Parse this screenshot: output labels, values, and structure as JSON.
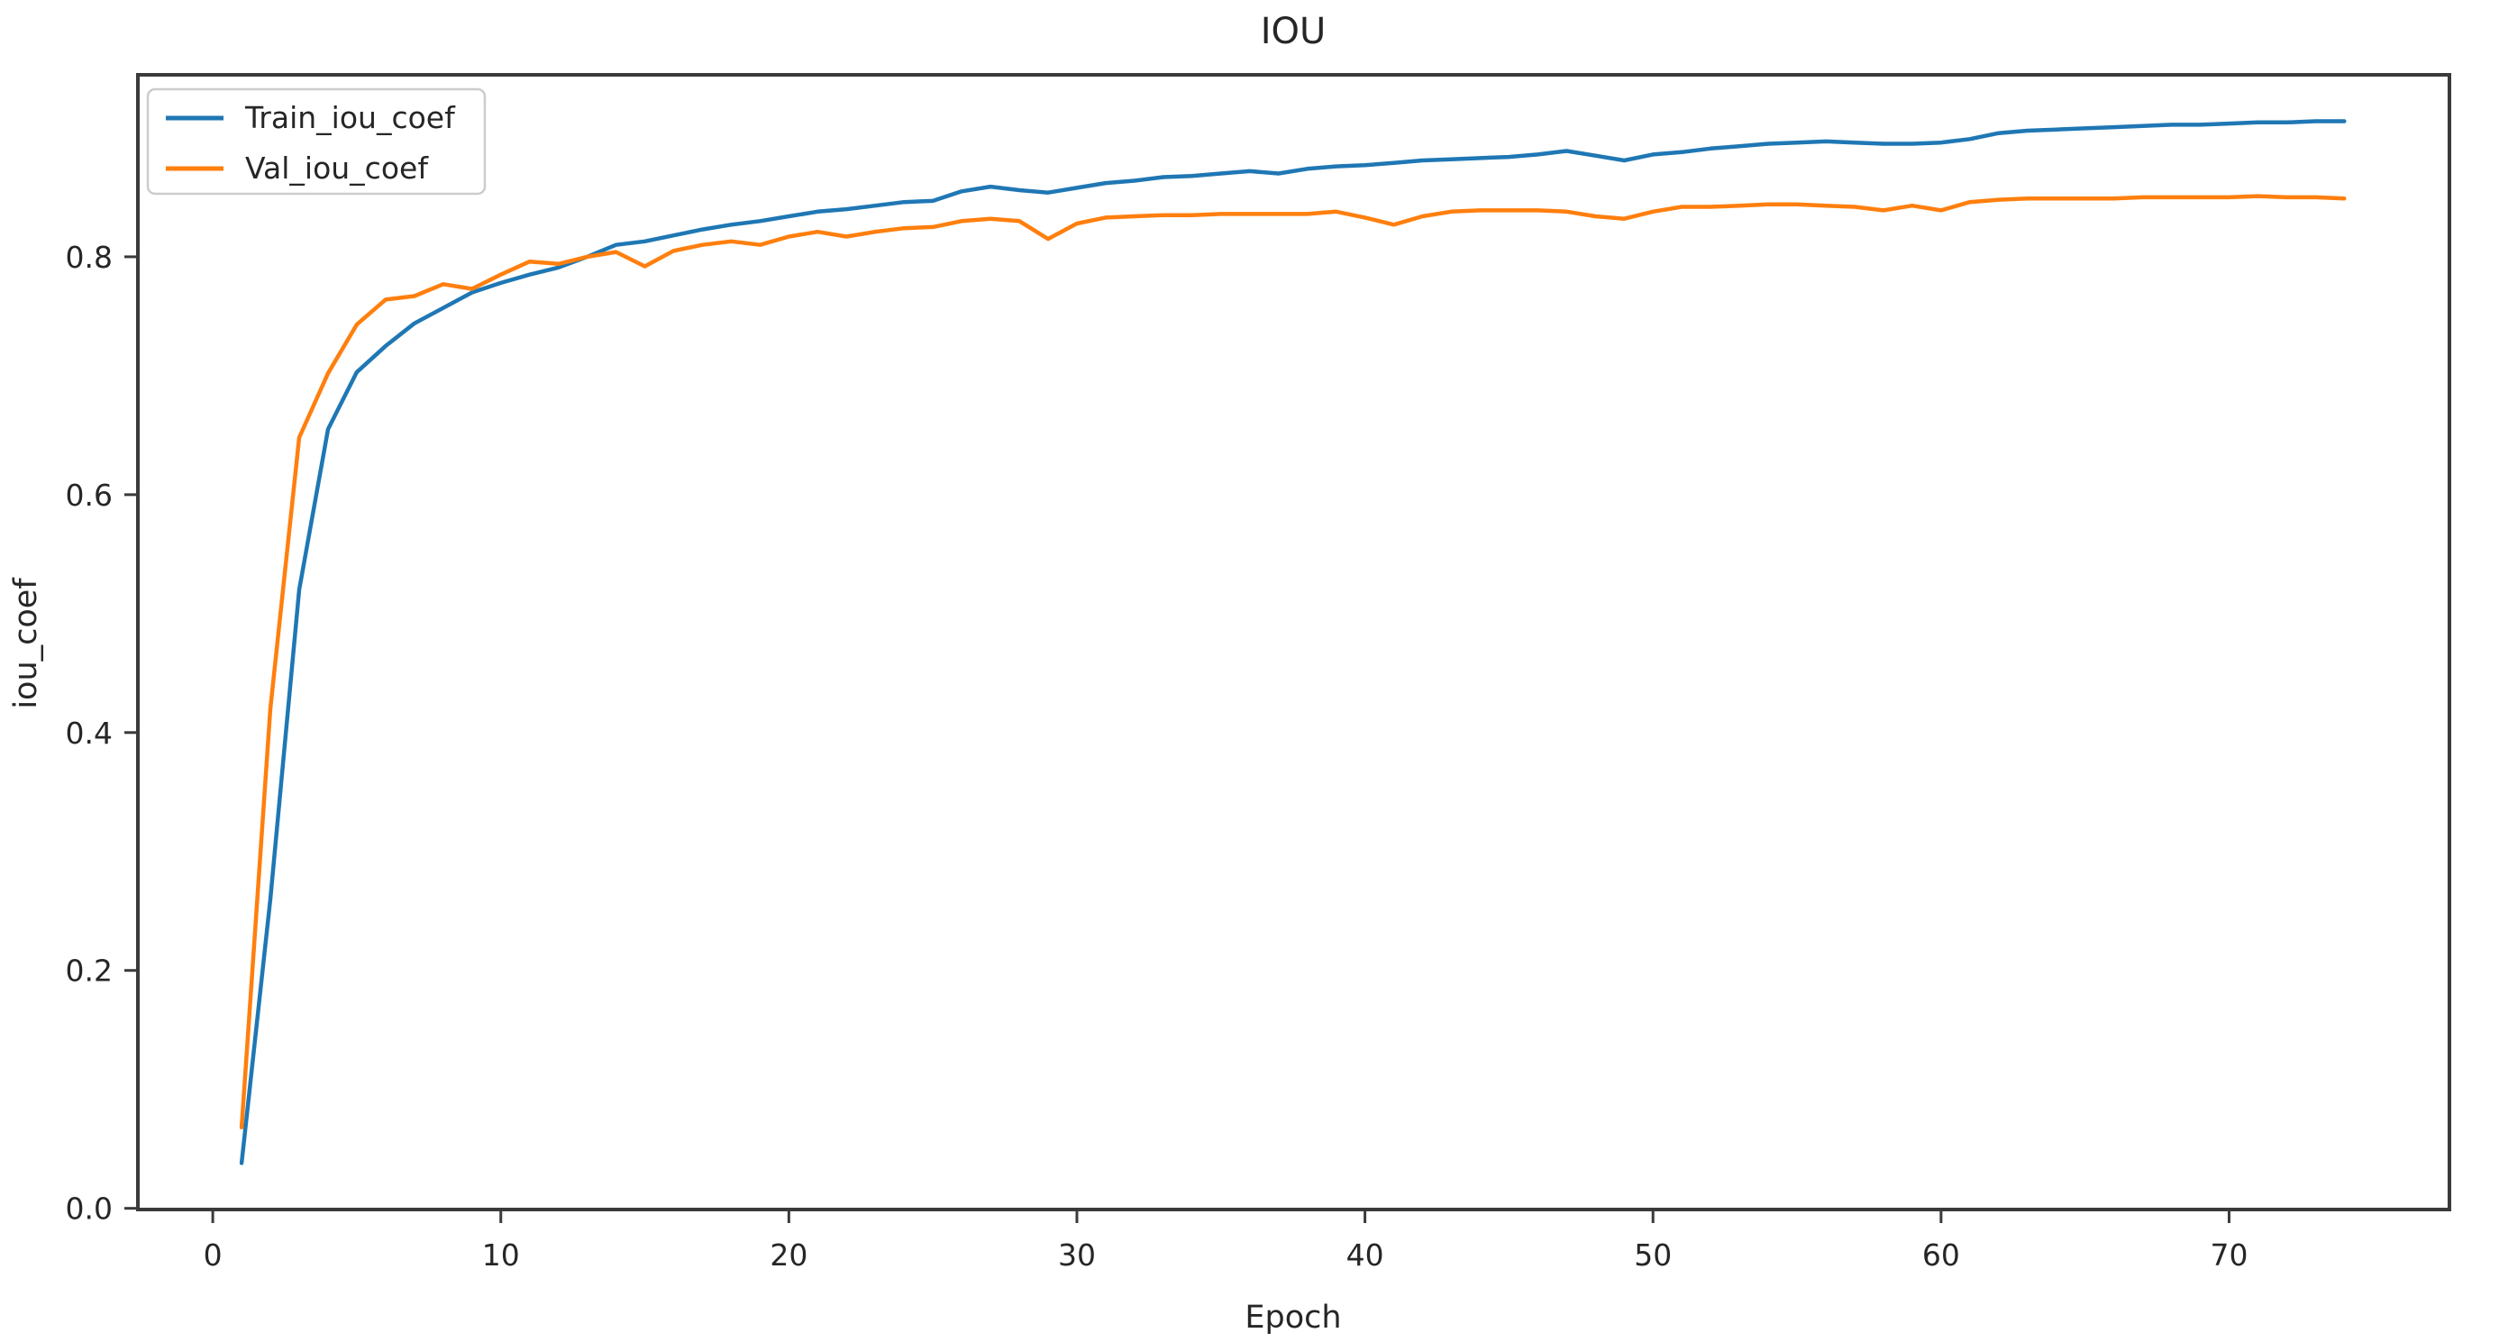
{
  "page": {
    "background": "#ffffff"
  },
  "chart_data": {
    "type": "line",
    "title": "IOU",
    "xlabel": "Epoch",
    "ylabel": "iou_coef",
    "grid": false,
    "legend_position": "upper left",
    "xlim": [
      -2.6,
      77.65
    ],
    "ylim": [
      -0.001,
      0.953
    ],
    "xticks": {
      "values": [
        0,
        10,
        20,
        30,
        40,
        50,
        60,
        70
      ],
      "labels": [
        "0",
        "10",
        "20",
        "30",
        "40",
        "50",
        "60",
        "70"
      ]
    },
    "yticks": {
      "values": [
        0.0,
        0.2,
        0.4,
        0.6,
        0.8
      ],
      "labels": [
        "0.0",
        "0.2",
        "0.4",
        "0.6",
        "0.8"
      ]
    },
    "x": [
      1,
      2,
      3,
      4,
      5,
      6,
      7,
      8,
      9,
      10,
      11,
      12,
      13,
      14,
      15,
      16,
      17,
      18,
      19,
      20,
      21,
      22,
      23,
      24,
      25,
      26,
      27,
      28,
      29,
      30,
      31,
      32,
      33,
      34,
      35,
      36,
      37,
      38,
      39,
      40,
      41,
      42,
      43,
      44,
      45,
      46,
      47,
      48,
      49,
      50,
      51,
      52,
      53,
      54,
      55,
      56,
      57,
      58,
      59,
      60,
      61,
      62,
      63,
      64,
      65,
      66,
      67,
      68,
      69,
      70,
      71,
      72,
      73,
      74
    ],
    "series": [
      {
        "name": "Train_iou_coef",
        "color": "#1f77b4",
        "values": [
          0.038,
          0.26,
          0.52,
          0.655,
          0.703,
          0.725,
          0.744,
          0.757,
          0.77,
          0.778,
          0.785,
          0.791,
          0.8,
          0.81,
          0.813,
          0.818,
          0.823,
          0.827,
          0.83,
          0.834,
          0.838,
          0.84,
          0.843,
          0.846,
          0.847,
          0.855,
          0.859,
          0.856,
          0.854,
          0.858,
          0.862,
          0.864,
          0.867,
          0.868,
          0.87,
          0.872,
          0.87,
          0.874,
          0.876,
          0.877,
          0.879,
          0.881,
          0.882,
          0.883,
          0.884,
          0.886,
          0.889,
          0.885,
          0.881,
          0.886,
          0.888,
          0.891,
          0.893,
          0.895,
          0.896,
          0.897,
          0.896,
          0.895,
          0.895,
          0.896,
          0.899,
          0.904,
          0.906,
          0.907,
          0.908,
          0.909,
          0.91,
          0.911,
          0.911,
          0.912,
          0.913,
          0.913,
          0.914,
          0.914
        ]
      },
      {
        "name": "Val_iou_coef",
        "color": "#ff7f0e",
        "values": [
          0.068,
          0.42,
          0.648,
          0.702,
          0.743,
          0.764,
          0.767,
          0.777,
          0.773,
          0.785,
          0.796,
          0.794,
          0.8,
          0.804,
          0.792,
          0.805,
          0.81,
          0.813,
          0.81,
          0.817,
          0.821,
          0.817,
          0.821,
          0.824,
          0.825,
          0.83,
          0.832,
          0.83,
          0.815,
          0.828,
          0.833,
          0.834,
          0.835,
          0.835,
          0.836,
          0.836,
          0.836,
          0.836,
          0.838,
          0.833,
          0.827,
          0.834,
          0.838,
          0.839,
          0.839,
          0.839,
          0.838,
          0.834,
          0.832,
          0.838,
          0.842,
          0.842,
          0.843,
          0.844,
          0.844,
          0.843,
          0.842,
          0.839,
          0.843,
          0.839,
          0.846,
          0.848,
          0.849,
          0.849,
          0.849,
          0.849,
          0.85,
          0.85,
          0.85,
          0.85,
          0.851,
          0.85,
          0.85,
          0.849
        ]
      }
    ]
  }
}
